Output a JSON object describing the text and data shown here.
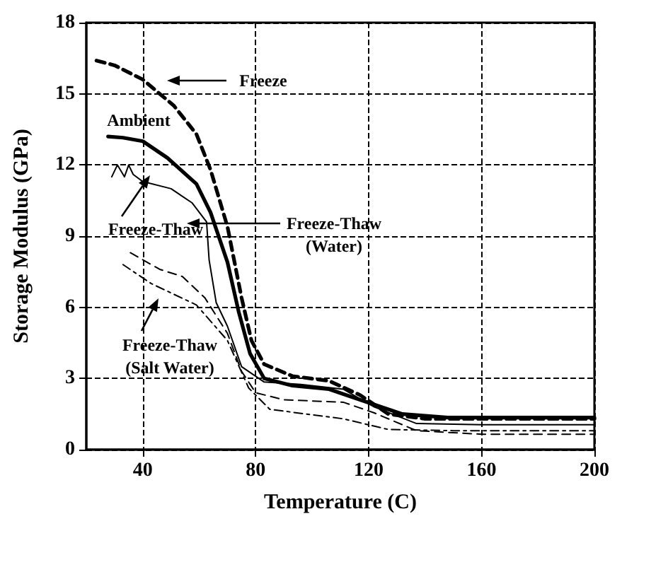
{
  "chart_data": {
    "type": "line",
    "xlabel": "Temperature (C)",
    "ylabel": "Storage Modulus (GPa)",
    "xlim": [
      20,
      200
    ],
    "xticks": [
      40,
      80,
      120,
      160,
      200
    ],
    "ylim": [
      0,
      18
    ],
    "yticks": [
      0,
      3,
      6,
      9,
      12,
      15,
      18
    ],
    "grid": true,
    "marker": "none",
    "series": [
      {
        "color": "#000000",
        "line_style": "dashed",
        "x": [
          23.6,
          30,
          40,
          51,
          59,
          64,
          70,
          75,
          78.5,
          83,
          93,
          106,
          117,
          127,
          140,
          160,
          200
        ],
        "values": [
          16.4,
          16.2,
          15.6,
          14.5,
          13.3,
          11.8,
          9.4,
          6.4,
          4.6,
          3.6,
          3.1,
          2.9,
          2.3,
          1.5,
          1.3,
          1.3,
          1.3
        ]
      },
      {
        "color": "#000000",
        "line_style": "solid",
        "x": [
          27.7,
          33,
          40,
          48.7,
          59,
          64,
          70,
          74,
          78,
          83,
          93,
          106,
          117,
          132,
          148,
          200
        ],
        "values": [
          13.2,
          13.15,
          13.0,
          12.3,
          11.2,
          10.0,
          7.9,
          5.8,
          4.05,
          3.0,
          2.7,
          2.55,
          2.1,
          1.5,
          1.35,
          1.35
        ]
      },
      {
        "color": "#000000",
        "line_style": "solid",
        "x": [
          29,
          31,
          33.5,
          35,
          36.6,
          40,
          50,
          57.5,
          62.6,
          63.5,
          66,
          70,
          75,
          83,
          96,
          111,
          122,
          137,
          160,
          200
        ],
        "values": [
          11.5,
          12.0,
          11.5,
          12.0,
          11.6,
          11.3,
          11.0,
          10.4,
          9.6,
          8.0,
          6.2,
          5.2,
          3.5,
          2.85,
          2.75,
          2.55,
          1.8,
          1.1,
          1.05,
          1.05
        ]
      },
      {
        "color": "#000000",
        "line_style": "dashed",
        "x": [
          35.6,
          46,
          54,
          62,
          70,
          75,
          80,
          90,
          111,
          122,
          137,
          160,
          200
        ],
        "values": [
          8.3,
          7.6,
          7.3,
          6.4,
          4.9,
          3.3,
          2.4,
          2.1,
          2.0,
          1.55,
          0.8,
          0.65,
          0.65
        ]
      },
      {
        "color": "#000000",
        "line_style": "dotted",
        "x": [
          33,
          43,
          59,
          70,
          77.5,
          85,
          111,
          127,
          150,
          200
        ],
        "values": [
          7.8,
          7.0,
          6.1,
          4.6,
          2.6,
          1.7,
          1.3,
          0.85,
          0.8,
          0.8
        ]
      }
    ],
    "annotations": [
      "Freeze",
      "Ambient",
      "Freeze-Thaw",
      "Freeze-Thaw\n(Water)",
      "Freeze-Thaw\n(Salt Water)"
    ]
  }
}
